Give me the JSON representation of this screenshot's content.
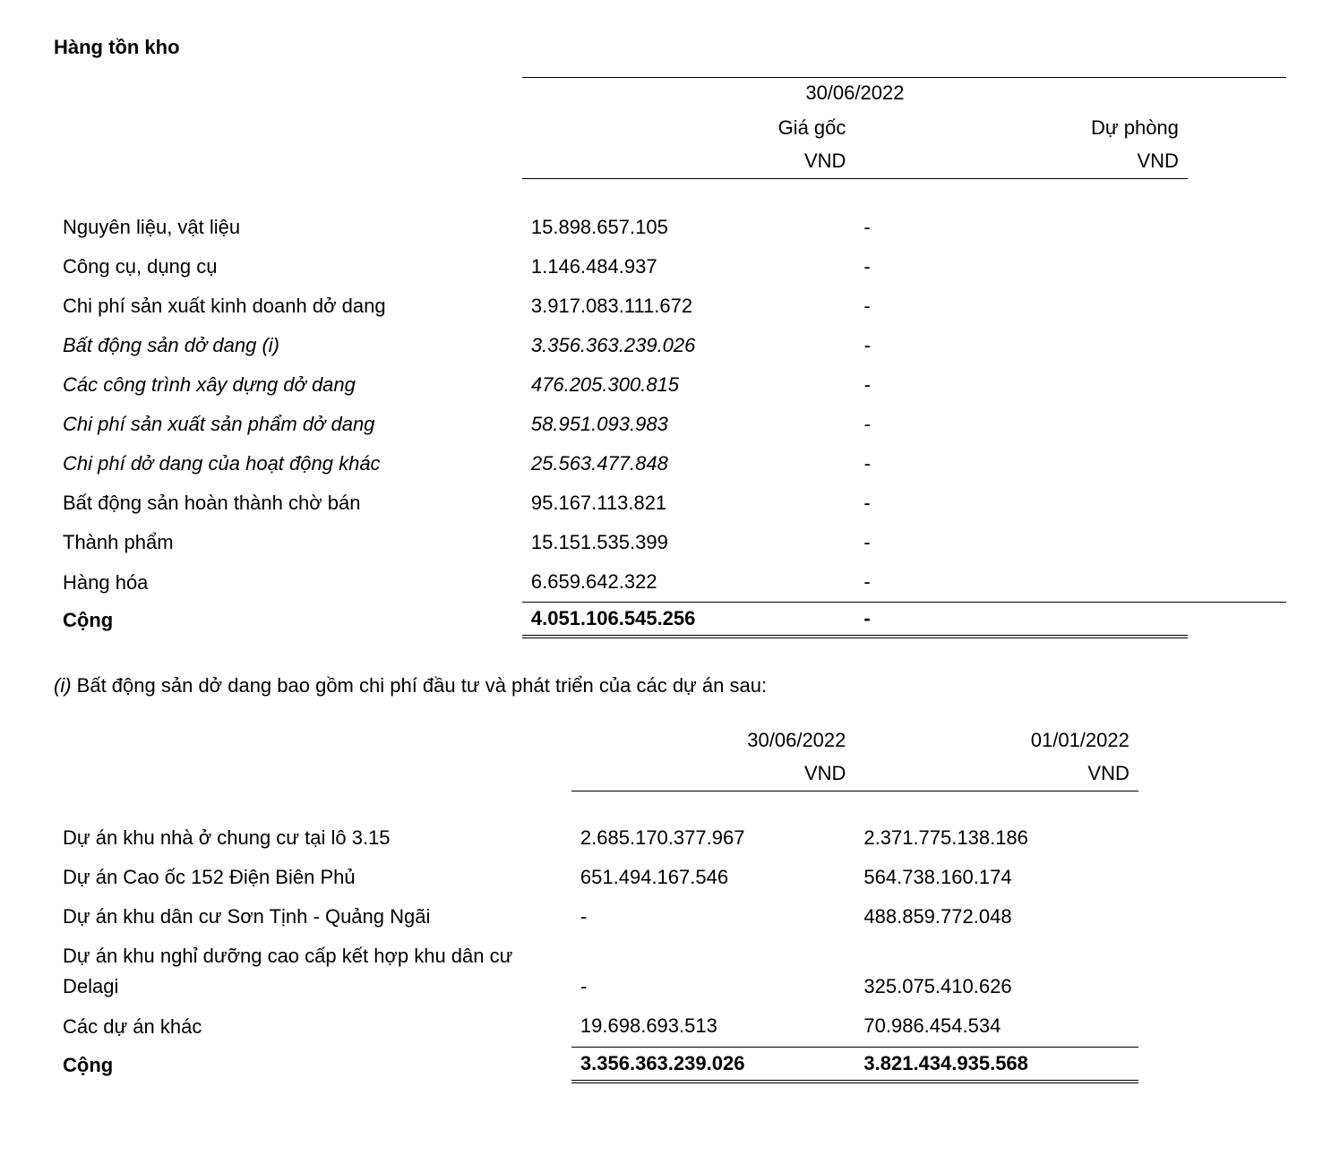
{
  "section_title": "Hàng tồn kho",
  "table1": {
    "date_header": "30/06/2022",
    "col1_label1": "Giá gốc",
    "col1_label2": "VND",
    "col2_label1": "Dự phòng",
    "col2_label2": "VND",
    "rows": [
      {
        "label": "Nguyên liệu, vật liệu",
        "c1": "15.898.657.105",
        "c2": "-",
        "sub": false
      },
      {
        "label": "Công cụ, dụng cụ",
        "c1": "1.146.484.937",
        "c2": "-",
        "sub": false
      },
      {
        "label": "Chi phí sản xuất kinh doanh dở dang",
        "c1": "3.917.083.111.672",
        "c2": "-",
        "sub": false
      },
      {
        "label": "Bất động sản dở dang (i)",
        "c1": "3.356.363.239.026",
        "c2": "-",
        "sub": true
      },
      {
        "label": "Các công trình xây dựng dở dang",
        "c1": "476.205.300.815",
        "c2": "-",
        "sub": true
      },
      {
        "label": "Chi phí sản xuất sản phẩm dở dang",
        "c1": "58.951.093.983",
        "c2": "-",
        "sub": true
      },
      {
        "label": "Chi phí dở dang của hoạt động khác",
        "c1": "25.563.477.848",
        "c2": "-",
        "sub": true
      },
      {
        "label": "Bất động sản hoàn thành chờ bán",
        "c1": "95.167.113.821",
        "c2": "-",
        "sub": false
      },
      {
        "label": "Thành phẩm",
        "c1": "15.151.535.399",
        "c2": "-",
        "sub": false
      },
      {
        "label": "Hàng hóa",
        "c1": "6.659.642.322",
        "c2": "-",
        "sub": false
      }
    ],
    "total": {
      "label": "Cộng",
      "c1": "4.051.106.545.256",
      "c2": "-"
    }
  },
  "note_i": {
    "marker": "(i)",
    "text": "Bất động sản dở dang bao gồm chi phí đầu tư và phát triển của các dự án sau:"
  },
  "table2": {
    "col1_label1": "30/06/2022",
    "col1_label2": "VND",
    "col2_label1": "01/01/2022",
    "col2_label2": "VND",
    "rows": [
      {
        "label": "Dự án khu nhà ở chung cư tại lô 3.15",
        "c1": "2.685.170.377.967",
        "c2": "2.371.775.138.186"
      },
      {
        "label": "Dự án Cao ốc 152 Điện Biên Phủ",
        "c1": "651.494.167.546",
        "c2": "564.738.160.174"
      },
      {
        "label": "Dự án khu dân cư Sơn Tịnh - Quảng Ngãi",
        "c1": "-",
        "c2": "488.859.772.048"
      },
      {
        "label": "Dự án khu nghỉ dưỡng cao cấp kết hợp khu dân cư Delagi",
        "c1": "-",
        "c2": "325.075.410.626"
      },
      {
        "label": "Các dự án khác",
        "c1": "19.698.693.513",
        "c2": "70.986.454.534"
      }
    ],
    "total": {
      "label": "Cộng",
      "c1": "3.356.363.239.026",
      "c2": "3.821.434.935.568"
    }
  }
}
